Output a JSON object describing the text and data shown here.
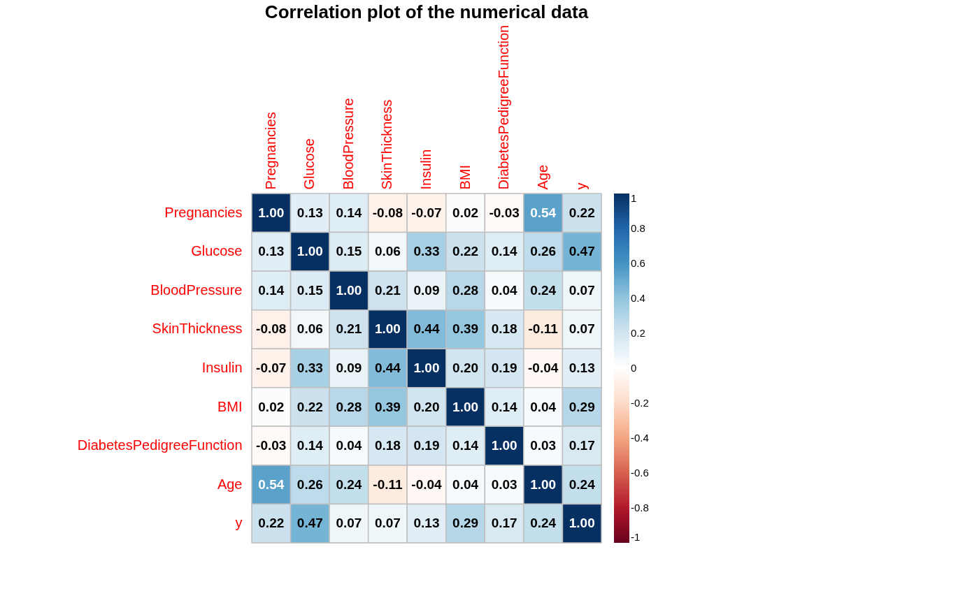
{
  "chart_data": {
    "type": "heatmap",
    "title": "Correlation plot of the numerical data",
    "categories": [
      "Pregnancies",
      "Glucose",
      "BloodPressure",
      "SkinThickness",
      "Insulin",
      "BMI",
      "DiabetesPedigreeFunction",
      "Age",
      "y"
    ],
    "y_categories": [
      "Pregnancies",
      "Glucose",
      "BloodPressure",
      "SkinThickness",
      "Insulin",
      "BMI",
      "DiabetesPedigreeFunction",
      "Age",
      "y"
    ],
    "cells": [
      [
        1.0,
        0.13,
        0.14,
        -0.08,
        -0.07,
        0.02,
        -0.03,
        0.54,
        0.22
      ],
      [
        0.13,
        1.0,
        0.15,
        0.06,
        0.33,
        0.22,
        0.14,
        0.26,
        0.47
      ],
      [
        0.14,
        0.15,
        1.0,
        0.21,
        0.09,
        0.28,
        0.04,
        0.24,
        0.07
      ],
      [
        -0.08,
        0.06,
        0.21,
        1.0,
        0.44,
        0.39,
        0.18,
        -0.11,
        0.07
      ],
      [
        -0.07,
        0.33,
        0.09,
        0.44,
        1.0,
        0.2,
        0.19,
        -0.04,
        0.13
      ],
      [
        0.02,
        0.22,
        0.28,
        0.39,
        0.2,
        1.0,
        0.14,
        0.04,
        0.29
      ],
      [
        -0.03,
        0.14,
        0.04,
        0.18,
        0.19,
        0.14,
        1.0,
        0.03,
        0.17
      ],
      [
        0.54,
        0.26,
        0.24,
        -0.11,
        -0.04,
        0.04,
        0.03,
        1.0,
        0.24
      ],
      [
        0.22,
        0.47,
        0.07,
        0.07,
        0.13,
        0.29,
        0.17,
        0.24,
        1.0
      ]
    ],
    "cell_labels": [
      [
        "1.00",
        "0.13",
        "0.14",
        "-0.08",
        "-0.07",
        "0.02",
        "-0.03",
        "0.54",
        "0.22"
      ],
      [
        "0.13",
        "1.00",
        "0.15",
        "0.06",
        "0.33",
        "0.22",
        "0.14",
        "0.26",
        "0.47"
      ],
      [
        "0.14",
        "0.15",
        "1.00",
        "0.21",
        "0.09",
        "0.28",
        "0.04",
        "0.24",
        "0.07"
      ],
      [
        "-0.08",
        "0.06",
        "0.21",
        "1.00",
        "0.44",
        "0.39",
        "0.18",
        "-0.11",
        "0.07"
      ],
      [
        "-0.07",
        "0.33",
        "0.09",
        "0.44",
        "1.00",
        "0.20",
        "0.19",
        "-0.04",
        "0.13"
      ],
      [
        "0.02",
        "0.22",
        "0.28",
        "0.39",
        "0.20",
        "1.00",
        "0.14",
        "0.04",
        "0.29"
      ],
      [
        "-0.03",
        "0.14",
        "0.04",
        "0.18",
        "0.19",
        "0.14",
        "1.00",
        "0.03",
        "0.17"
      ],
      [
        "0.54",
        "0.26",
        "0.24",
        "-0.11",
        "-0.04",
        "0.04",
        "0.03",
        "1.00",
        "0.24"
      ],
      [
        "0.22",
        "0.47",
        "0.07",
        "0.07",
        "0.13",
        "0.29",
        "0.17",
        "0.24",
        "1.00"
      ]
    ],
    "clim": [
      -1,
      1
    ],
    "cticks": [
      -1,
      -0.8,
      -0.6,
      -0.4,
      -0.2,
      0,
      0.2,
      0.4,
      0.6,
      0.8,
      1
    ]
  }
}
